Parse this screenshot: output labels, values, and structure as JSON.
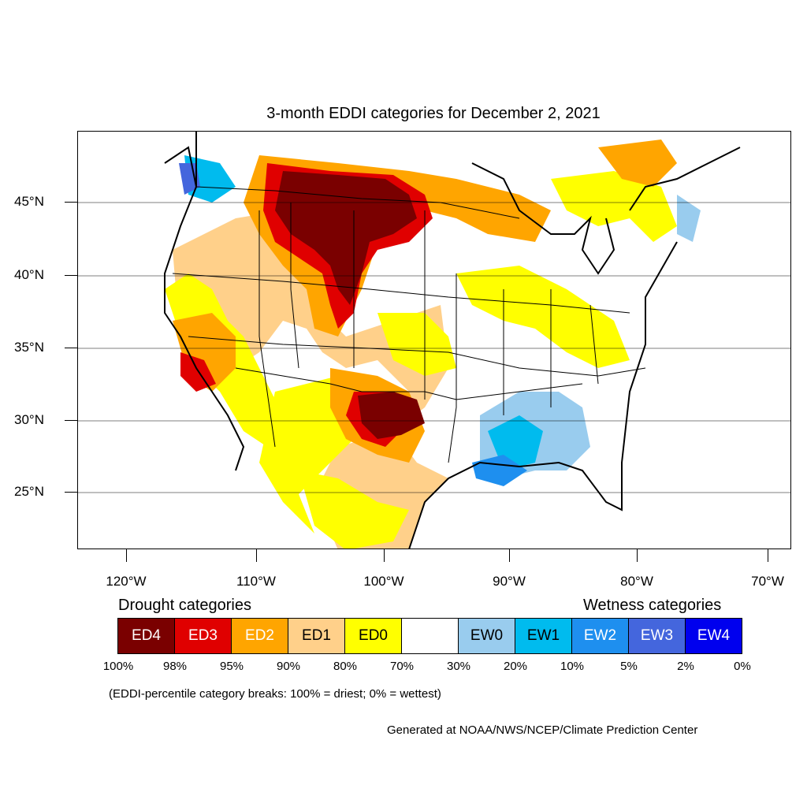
{
  "title": "3-month EDDI categories for December 2, 2021",
  "map": {
    "latitude_labels": [
      "45°N",
      "40°N",
      "35°N",
      "30°N",
      "25°N"
    ],
    "longitude_labels": [
      "120°W",
      "110°W",
      "100°W",
      "90°W",
      "80°W",
      "70°W"
    ]
  },
  "legend": {
    "drought_heading": "Drought categories",
    "wetness_heading": "Wetness categories",
    "categories": [
      {
        "label": "ED4",
        "color": "#7a0000",
        "text_color": "#ffffff"
      },
      {
        "label": "ED3",
        "color": "#e00000",
        "text_color": "#ffffff"
      },
      {
        "label": "ED2",
        "color": "#ffa500",
        "text_color": "#ffffff"
      },
      {
        "label": "ED1",
        "color": "#ffd08a",
        "text_color": "#000000"
      },
      {
        "label": "ED0",
        "color": "#ffff00",
        "text_color": "#000000"
      },
      {
        "label": "",
        "color": "#ffffff",
        "text_color": "#000000"
      },
      {
        "label": "EW0",
        "color": "#99ccee",
        "text_color": "#000000"
      },
      {
        "label": "EW1",
        "color": "#00bbee",
        "text_color": "#000000"
      },
      {
        "label": "EW2",
        "color": "#1e8fef",
        "text_color": "#ffffff"
      },
      {
        "label": "EW3",
        "color": "#4466dd",
        "text_color": "#ffffff"
      },
      {
        "label": "EW4",
        "color": "#0000ee",
        "text_color": "#ffffff"
      }
    ],
    "percentiles": [
      "100%",
      "98%",
      "95%",
      "90%",
      "80%",
      "70%",
      "30%",
      "20%",
      "10%",
      "5%",
      "2%",
      "0%"
    ]
  },
  "note": "(EDDI-percentile category breaks: 100% = driest; 0% = wettest)",
  "credit": "Generated at NOAA/NWS/NCEP/Climate Prediction Center"
}
